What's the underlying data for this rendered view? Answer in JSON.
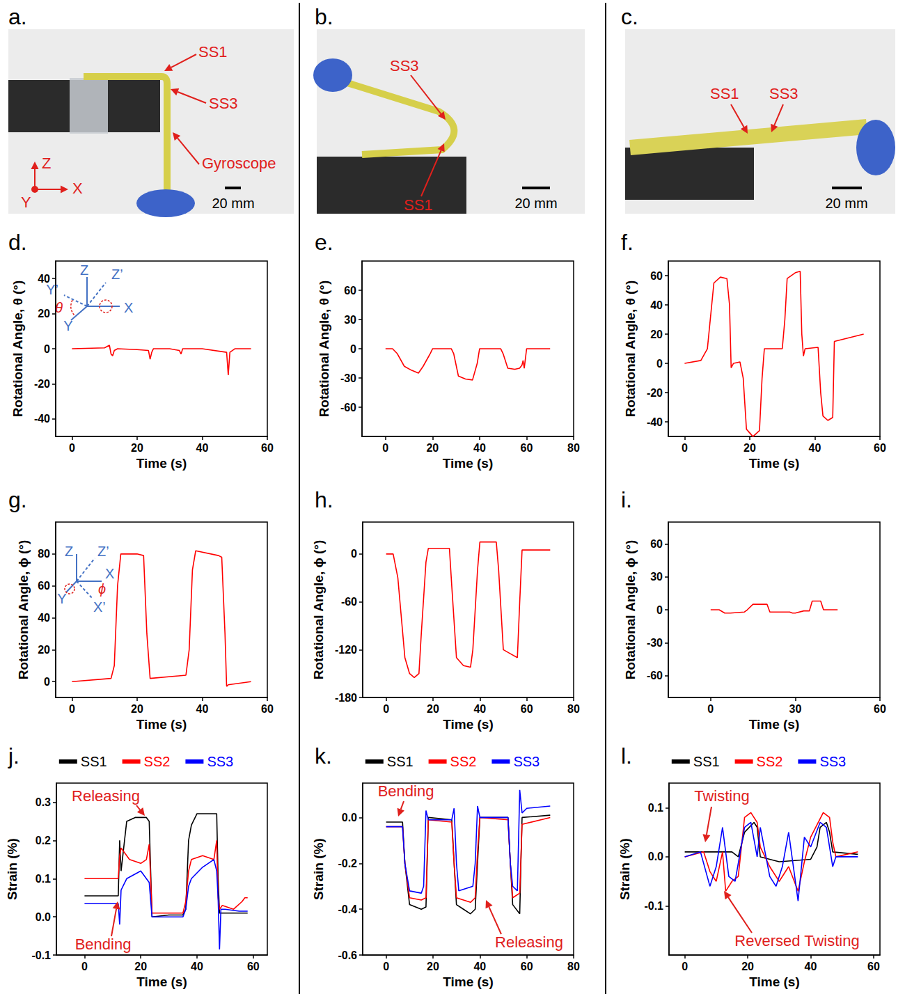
{
  "photos": [
    {
      "panel": "a.",
      "labels": [
        "SS1",
        "SS3",
        "Gyroscope"
      ],
      "scale_bar": "20 mm",
      "axes": [
        "Z",
        "X",
        "Y"
      ]
    },
    {
      "panel": "b.",
      "labels": [
        "SS3",
        "SS1"
      ],
      "scale_bar": "20 mm"
    },
    {
      "panel": "c.",
      "labels": [
        "SS1",
        "SS3"
      ],
      "scale_bar": "20 mm"
    }
  ],
  "chart_data": [
    {
      "panel": "d.",
      "type": "line",
      "x_label": "Time (s)",
      "y_label": "Rotational Angle, θ (°)",
      "xlim": [
        -5,
        60
      ],
      "xticks": [
        0,
        20,
        40,
        60
      ],
      "ylim": [
        -50,
        50
      ],
      "yticks": [
        -40,
        -20,
        0,
        20,
        40
      ],
      "inset_labels": [
        "Z",
        "Z’",
        "Y’",
        "X",
        "Y",
        "θ"
      ],
      "series": [
        {
          "color": "#ff0000",
          "x": [
            0,
            10,
            11.5,
            12,
            12.5,
            13,
            14,
            20,
            23.5,
            24,
            24.5,
            25,
            30,
            33,
            33.5,
            34,
            40,
            47.5,
            48,
            48.5,
            50,
            55
          ],
          "values": [
            0,
            0.5,
            2,
            -3,
            -4,
            -1,
            0,
            -0.5,
            -1,
            -6,
            -2,
            0,
            0,
            -1,
            -3,
            0,
            0,
            -2,
            -15,
            -2,
            0,
            0
          ]
        }
      ]
    },
    {
      "panel": "e.",
      "type": "line",
      "x_label": "Time (s)",
      "y_label": "Rotational Angle, θ (°)",
      "xlim": [
        -10,
        80
      ],
      "xticks": [
        0,
        20,
        40,
        60,
        80
      ],
      "ylim": [
        -90,
        90
      ],
      "yticks": [
        -60,
        -30,
        0,
        30,
        60
      ],
      "series": [
        {
          "color": "#ff0000",
          "x": [
            0,
            3,
            5,
            8,
            11,
            14,
            16,
            19,
            20,
            28,
            29,
            31,
            34,
            37,
            39,
            40,
            49,
            50,
            52,
            55,
            57,
            58,
            58.5,
            59,
            60,
            70
          ],
          "values": [
            0,
            0,
            -5,
            -18,
            -22,
            -25,
            -18,
            -5,
            0,
            0,
            -5,
            -28,
            -31,
            -32,
            -15,
            0,
            0,
            -5,
            -20,
            -21,
            -20,
            -17,
            -12,
            -20,
            0,
            0
          ]
        }
      ]
    },
    {
      "panel": "f.",
      "type": "line",
      "x_label": "Time (s)",
      "y_label": "Rotational Angle, θ (°)",
      "xlim": [
        -5,
        60
      ],
      "xticks": [
        0,
        20,
        40,
        60
      ],
      "ylim": [
        -50,
        70
      ],
      "yticks": [
        -40,
        -20,
        0,
        20,
        40,
        60
      ],
      "series": [
        {
          "color": "#ff0000",
          "x": [
            0,
            5,
            7,
            9,
            11,
            13,
            13.8,
            14.3,
            15,
            17,
            18,
            19,
            21,
            23,
            23.8,
            24.5,
            30,
            30.8,
            31.5,
            34,
            35.5,
            36,
            36.5,
            37,
            41,
            41.8,
            42.5,
            44,
            45.5,
            46,
            55
          ],
          "values": [
            0,
            2,
            10,
            55,
            59,
            58,
            40,
            -3,
            0,
            1,
            -10,
            -45,
            -50,
            -46,
            -10,
            10,
            10,
            30,
            58,
            62,
            63,
            20,
            5,
            10,
            11,
            -20,
            -36,
            -39,
            -37,
            15,
            20
          ]
        }
      ]
    },
    {
      "panel": "g.",
      "type": "line",
      "x_label": "Time (s)",
      "y_label": "Rotational Angle, ϕ (°)",
      "xlim": [
        -5,
        60
      ],
      "xticks": [
        0,
        20,
        40,
        60
      ],
      "ylim": [
        -10,
        100
      ],
      "yticks": [
        0,
        20,
        40,
        60,
        80
      ],
      "inset_labels": [
        "Z",
        "Z’",
        "X",
        "Y",
        "X’",
        "ϕ"
      ],
      "series": [
        {
          "color": "#ff0000",
          "x": [
            0,
            12,
            13,
            14,
            15,
            20,
            22,
            23,
            24,
            35,
            36,
            37,
            38,
            45,
            46,
            47,
            47.5,
            48,
            55
          ],
          "values": [
            0,
            2,
            10,
            60,
            80,
            80,
            79,
            30,
            2,
            4,
            20,
            70,
            82,
            79,
            78,
            30,
            -3,
            -2,
            0
          ]
        }
      ]
    },
    {
      "panel": "h.",
      "type": "line",
      "x_label": "Time (s)",
      "y_label": "Rotational Angle, ϕ (°)",
      "xlim": [
        -10,
        80
      ],
      "xticks": [
        0,
        20,
        40,
        60,
        80
      ],
      "ylim": [
        -180,
        40
      ],
      "yticks": [
        -180,
        -120,
        -60,
        0
      ],
      "series": [
        {
          "color": "#ff0000",
          "x": [
            0,
            3,
            5,
            8,
            10,
            12,
            14,
            15,
            17,
            18,
            27,
            28,
            30,
            33,
            36,
            37,
            39,
            40,
            47,
            48,
            50,
            53,
            56,
            57,
            58,
            70
          ],
          "values": [
            0,
            0,
            -30,
            -130,
            -150,
            -155,
            -150,
            -100,
            -10,
            7,
            7,
            -40,
            -130,
            -140,
            -142,
            -120,
            -20,
            15,
            15,
            -20,
            -120,
            -125,
            -130,
            -60,
            5,
            5
          ]
        }
      ]
    },
    {
      "panel": "i.",
      "type": "line",
      "x_label": "Time (s)",
      "y_label": "Rotational Angle, ϕ (°)",
      "xlim": [
        -15,
        60
      ],
      "xticks": [
        0,
        30,
        60
      ],
      "ylim": [
        -80,
        80
      ],
      "yticks": [
        -60,
        -30,
        0,
        30,
        60
      ],
      "series": [
        {
          "color": "#ff0000",
          "x": [
            0,
            3,
            5,
            7,
            12,
            13,
            15,
            20,
            21,
            28,
            29,
            30,
            33,
            35,
            36,
            39,
            40,
            45
          ],
          "values": [
            0,
            0,
            -3,
            -3,
            -2,
            0,
            5,
            5,
            -2,
            -2,
            -3,
            -3,
            -1,
            -1,
            8,
            8,
            0,
            0
          ]
        }
      ]
    },
    {
      "panel": "j.",
      "type": "line",
      "x_label": "Time (s)",
      "y_label": "Strain (%)",
      "legend": "top",
      "xlim": [
        -10,
        65
      ],
      "xticks": [
        0,
        20,
        40,
        60
      ],
      "ylim": [
        -0.1,
        0.35
      ],
      "yticks": [
        -0.1,
        {
          "value": 0,
          "label": "0.0"
        },
        0.1,
        0.2,
        0.3
      ],
      "annotations": [
        "Releasing",
        "Bending"
      ],
      "series": [
        {
          "name": "SS1",
          "color": "#000000",
          "x": [
            0,
            12,
            12.5,
            13,
            15,
            18,
            22,
            23,
            24,
            30,
            35,
            36,
            37,
            38,
            40,
            45,
            47,
            47.5,
            48,
            52,
            58
          ],
          "values": [
            0.055,
            0.055,
            0.2,
            0.12,
            0.25,
            0.26,
            0.26,
            0.25,
            0.0,
            0.005,
            0.005,
            0.02,
            0.2,
            0.24,
            0.27,
            0.27,
            0.27,
            0.1,
            0.01,
            0.01,
            0.01
          ]
        },
        {
          "name": "SS2",
          "color": "#ff0000",
          "x": [
            0,
            12,
            12.5,
            13,
            16,
            20,
            22,
            23,
            23.5,
            24,
            30,
            35,
            36,
            37,
            38,
            42,
            46,
            47,
            47.5,
            48,
            49,
            53,
            56,
            57,
            58
          ],
          "values": [
            0.1,
            0.1,
            0.16,
            0.18,
            0.15,
            0.14,
            0.15,
            0.19,
            0.1,
            0.01,
            0.01,
            0.01,
            0.04,
            0.12,
            0.15,
            0.16,
            0.15,
            0.2,
            0.05,
            0.02,
            0.03,
            0.02,
            0.04,
            0.05,
            0.05
          ]
        },
        {
          "name": "SS3",
          "color": "#0000ff",
          "x": [
            0,
            12,
            12.5,
            13,
            15,
            20,
            22,
            23,
            24,
            30,
            35,
            36,
            37,
            38,
            42,
            46,
            47,
            47.5,
            48,
            48.5,
            50,
            55,
            58
          ],
          "values": [
            0.035,
            0.035,
            -0.02,
            0.07,
            0.1,
            0.12,
            0.1,
            0.09,
            0.0,
            0.0,
            0.0,
            0.02,
            0.08,
            0.1,
            0.13,
            0.15,
            0.12,
            0.05,
            -0.085,
            0.02,
            0.02,
            0.015,
            0.015
          ]
        }
      ]
    },
    {
      "panel": "k.",
      "type": "line",
      "x_label": "Time (s)",
      "y_label": "Strain (%)",
      "legend": "top",
      "xlim": [
        -10,
        80
      ],
      "xticks": [
        0,
        20,
        40,
        60,
        80
      ],
      "ylim": [
        -0.6,
        0.15
      ],
      "yticks": [
        -0.6,
        -0.4,
        -0.2,
        {
          "value": 0,
          "label": "0.0"
        }
      ],
      "annotations": [
        "Bending",
        "Releasing"
      ],
      "series": [
        {
          "name": "SS1",
          "color": "#000000",
          "x": [
            0,
            7,
            8,
            10,
            15,
            17,
            18,
            28,
            29,
            30,
            33,
            36,
            38,
            39,
            40,
            52,
            53,
            54,
            57,
            57.5,
            58,
            70
          ],
          "values": [
            -0.02,
            -0.02,
            -0.2,
            -0.38,
            -0.4,
            -0.39,
            0.0,
            -0.01,
            -0.2,
            -0.38,
            -0.4,
            -0.42,
            -0.4,
            -0.2,
            0.0,
            0.0,
            -0.2,
            -0.38,
            -0.42,
            -0.2,
            0.0,
            0.01
          ]
        },
        {
          "name": "SS2",
          "color": "#ff0000",
          "x": [
            0,
            7,
            8,
            10,
            15,
            17,
            18,
            28,
            29,
            30,
            36,
            38,
            39,
            40,
            52,
            53,
            54,
            57,
            58,
            70
          ],
          "values": [
            -0.04,
            -0.04,
            -0.2,
            -0.35,
            -0.36,
            -0.35,
            -0.01,
            -0.02,
            -0.2,
            -0.35,
            -0.37,
            -0.35,
            -0.15,
            0.0,
            -0.01,
            -0.2,
            -0.35,
            -0.33,
            -0.03,
            0.0
          ]
        },
        {
          "name": "SS3",
          "color": "#0000ff",
          "x": [
            0,
            7,
            8,
            10,
            15,
            16,
            17,
            18,
            20,
            28,
            29,
            30,
            31,
            37,
            38,
            39,
            40,
            42,
            52,
            53,
            54,
            56,
            57,
            58,
            60,
            70
          ],
          "values": [
            -0.04,
            -0.04,
            -0.2,
            -0.32,
            -0.33,
            -0.3,
            0.03,
            -0.01,
            -0.01,
            -0.01,
            0.04,
            -0.2,
            -0.32,
            -0.3,
            -0.2,
            0.05,
            0.0,
            0.0,
            0.0,
            -0.2,
            -0.3,
            -0.32,
            0.12,
            0.02,
            0.04,
            0.05
          ]
        }
      ]
    },
    {
      "panel": "l.",
      "type": "line",
      "x_label": "Time (s)",
      "y_label": "Strain (%)",
      "legend": "top",
      "xlim": [
        -5,
        62
      ],
      "xticks": [
        0,
        20,
        40,
        60
      ],
      "ylim": [
        -0.2,
        0.15
      ],
      "yticks": [
        -0.1,
        {
          "value": 0,
          "label": "0.0"
        },
        0.1
      ],
      "annotations": [
        "Twisting",
        "Reversed Twisting"
      ],
      "series": [
        {
          "name": "SS1",
          "color": "#000000",
          "x": [
            0,
            15,
            17,
            19,
            22,
            23,
            24,
            30,
            40,
            42,
            43,
            45,
            46,
            47,
            55
          ],
          "values": [
            0.01,
            0.01,
            0.0,
            0.05,
            0.07,
            0.06,
            0.0,
            -0.01,
            -0.005,
            0.02,
            0.06,
            0.07,
            0.05,
            0.01,
            0.005
          ]
        },
        {
          "name": "SS2",
          "color": "#ff0000",
          "x": [
            0,
            6,
            8,
            10,
            12,
            13,
            15,
            17,
            19,
            21,
            23,
            24,
            27,
            30,
            33,
            36,
            38,
            40,
            44,
            46,
            47,
            48,
            55
          ],
          "values": [
            0.0,
            0.01,
            -0.03,
            -0.05,
            0.01,
            -0.07,
            -0.05,
            -0.04,
            0.08,
            0.09,
            0.07,
            0.02,
            -0.02,
            -0.05,
            -0.02,
            -0.07,
            -0.01,
            0.04,
            0.09,
            0.08,
            0.03,
            0.0,
            0.01
          ]
        },
        {
          "name": "SS3",
          "color": "#0000ff",
          "x": [
            0,
            5,
            8,
            10,
            12,
            14,
            16,
            19,
            21,
            23,
            24,
            27,
            29,
            31,
            33,
            36,
            38,
            40,
            43,
            45,
            47,
            48,
            55
          ],
          "values": [
            0.0,
            0.01,
            -0.06,
            -0.02,
            0.06,
            -0.04,
            -0.05,
            0.06,
            0.07,
            0.0,
            0.06,
            -0.04,
            -0.06,
            -0.02,
            0.05,
            -0.09,
            0.04,
            0.02,
            0.07,
            0.06,
            -0.02,
            0.0,
            0.0
          ]
        }
      ]
    }
  ]
}
